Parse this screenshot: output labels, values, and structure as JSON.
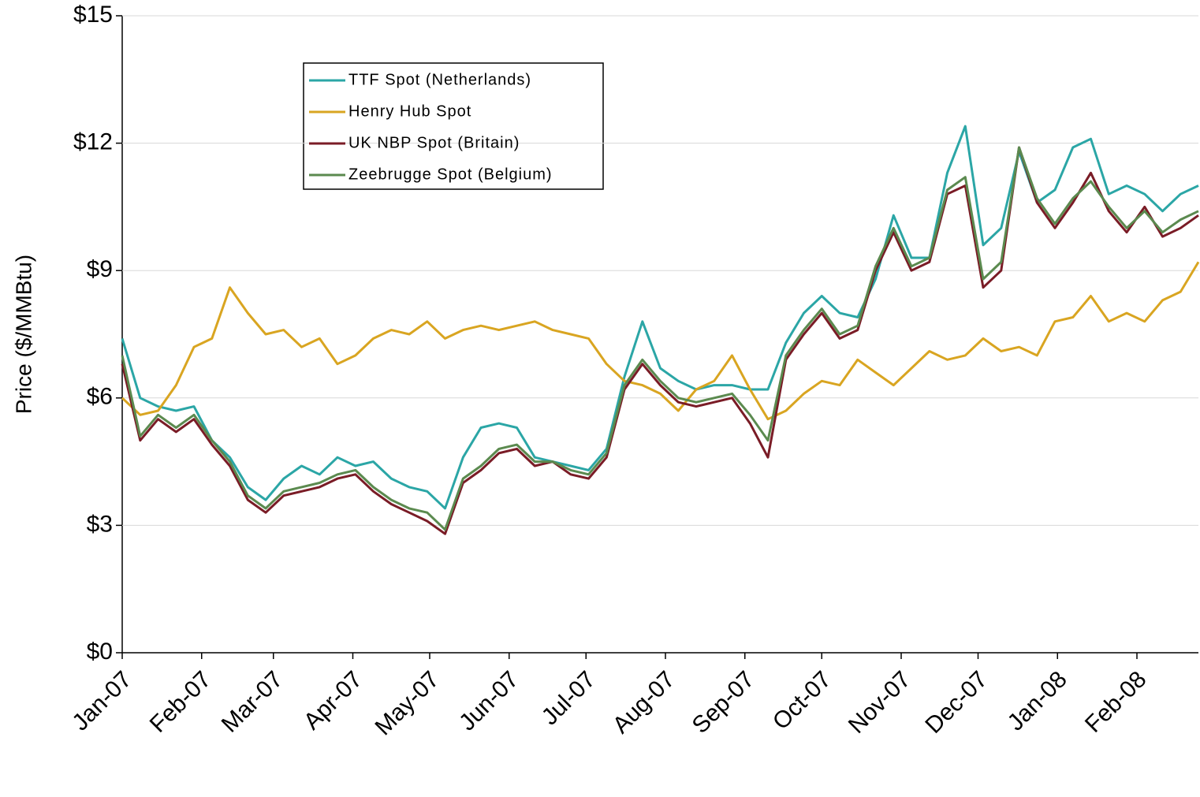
{
  "chart_data": {
    "type": "line",
    "y_label": "Price ($/MMBtu)",
    "x": [
      0,
      7,
      14,
      21,
      28,
      35,
      42,
      49,
      56,
      63,
      70,
      77,
      84,
      91,
      98,
      105,
      112,
      119,
      126,
      133,
      140,
      147,
      154,
      161,
      168,
      175,
      182,
      189,
      196,
      203,
      210,
      217,
      224,
      231,
      238,
      245,
      252,
      259,
      266,
      273,
      280,
      287,
      294,
      301,
      308,
      315,
      322,
      329,
      336,
      343,
      350,
      357,
      364,
      371,
      378,
      385,
      392,
      399,
      406,
      413,
      420
    ],
    "xlim": [
      0,
      420
    ],
    "xticks": [
      {
        "value": 0,
        "label": "Jan-07"
      },
      {
        "value": 31,
        "label": "Feb-07"
      },
      {
        "value": 59,
        "label": "Mar-07"
      },
      {
        "value": 90,
        "label": "Apr-07"
      },
      {
        "value": 120,
        "label": "May-07"
      },
      {
        "value": 151,
        "label": "Jun-07"
      },
      {
        "value": 181,
        "label": "Jul-07"
      },
      {
        "value": 212,
        "label": "Aug-07"
      },
      {
        "value": 243,
        "label": "Sep-07"
      },
      {
        "value": 273,
        "label": "Oct-07"
      },
      {
        "value": 304,
        "label": "Nov-07"
      },
      {
        "value": 334,
        "label": "Dec-07"
      },
      {
        "value": 365,
        "label": "Jan-08"
      },
      {
        "value": 396,
        "label": "Feb-08"
      }
    ],
    "ylim": [
      0,
      15
    ],
    "yticks": [
      {
        "value": 0,
        "label": "$0"
      },
      {
        "value": 3,
        "label": "$3"
      },
      {
        "value": 6,
        "label": "$6"
      },
      {
        "value": 9,
        "label": "$9"
      },
      {
        "value": 12,
        "label": "$12"
      },
      {
        "value": 15,
        "label": "$15"
      }
    ],
    "grid": true,
    "series": [
      {
        "name": "TTF Spot (Netherlands)",
        "color": "#2ba6a6",
        "values": [
          7.4,
          6.0,
          5.8,
          5.7,
          5.8,
          5.0,
          4.6,
          3.9,
          3.6,
          4.1,
          4.4,
          4.2,
          4.6,
          4.4,
          4.5,
          4.1,
          3.9,
          3.8,
          3.4,
          4.6,
          5.3,
          5.4,
          5.3,
          4.6,
          4.5,
          4.4,
          4.3,
          4.8,
          6.5,
          7.8,
          6.7,
          6.4,
          6.2,
          6.3,
          6.3,
          6.2,
          6.2,
          7.3,
          8.0,
          8.4,
          8.0,
          7.9,
          8.8,
          10.3,
          9.3,
          9.3,
          11.3,
          12.4,
          9.6,
          10.0,
          11.8,
          10.6,
          10.9,
          11.9,
          12.1,
          10.8,
          11.0,
          10.8,
          10.4,
          10.8,
          11.0
        ]
      },
      {
        "name": "Henry Hub Spot",
        "color": "#d9a521",
        "values": [
          6.0,
          5.6,
          5.7,
          6.3,
          7.2,
          7.4,
          8.6,
          8.0,
          7.5,
          7.6,
          7.2,
          7.4,
          6.8,
          7.0,
          7.4,
          7.6,
          7.5,
          7.8,
          7.4,
          7.6,
          7.7,
          7.6,
          7.7,
          7.8,
          7.6,
          7.5,
          7.4,
          6.8,
          6.4,
          6.3,
          6.1,
          5.7,
          6.2,
          6.4,
          7.0,
          6.2,
          5.5,
          5.7,
          6.1,
          6.4,
          6.3,
          6.9,
          6.6,
          6.3,
          6.7,
          7.1,
          6.9,
          7.0,
          7.4,
          7.1,
          7.2,
          7.0,
          7.8,
          7.9,
          8.4,
          7.8,
          8.0,
          7.8,
          8.3,
          8.5,
          9.2
        ]
      },
      {
        "name": "UK NBP Spot (Britain)",
        "color": "#7a1c26",
        "values": [
          6.8,
          5.0,
          5.5,
          5.2,
          5.5,
          4.9,
          4.4,
          3.6,
          3.3,
          3.7,
          3.8,
          3.9,
          4.1,
          4.2,
          3.8,
          3.5,
          3.3,
          3.1,
          2.8,
          4.0,
          4.3,
          4.7,
          4.8,
          4.4,
          4.5,
          4.2,
          4.1,
          4.6,
          6.2,
          6.8,
          6.3,
          5.9,
          5.8,
          5.9,
          6.0,
          5.4,
          4.6,
          6.9,
          7.5,
          8.0,
          7.4,
          7.6,
          9.0,
          9.9,
          9.0,
          9.2,
          10.8,
          11.0,
          8.6,
          9.0,
          11.9,
          10.6,
          10.0,
          10.6,
          11.3,
          10.4,
          9.9,
          10.5,
          9.8,
          10.0,
          10.3
        ]
      },
      {
        "name": "Zeebrugge Spot (Belgium)",
        "color": "#5b8a4f",
        "values": [
          7.0,
          5.1,
          5.6,
          5.3,
          5.6,
          5.0,
          4.5,
          3.7,
          3.4,
          3.8,
          3.9,
          4.0,
          4.2,
          4.3,
          3.9,
          3.6,
          3.4,
          3.3,
          2.9,
          4.1,
          4.4,
          4.8,
          4.9,
          4.5,
          4.5,
          4.3,
          4.2,
          4.7,
          6.3,
          6.9,
          6.4,
          6.0,
          5.9,
          6.0,
          6.1,
          5.6,
          5.0,
          7.0,
          7.6,
          8.1,
          7.5,
          7.7,
          9.1,
          10.0,
          9.1,
          9.3,
          10.9,
          11.2,
          8.8,
          9.2,
          11.9,
          10.7,
          10.1,
          10.7,
          11.1,
          10.5,
          10.0,
          10.4,
          9.9,
          10.2,
          10.4
        ]
      }
    ]
  }
}
